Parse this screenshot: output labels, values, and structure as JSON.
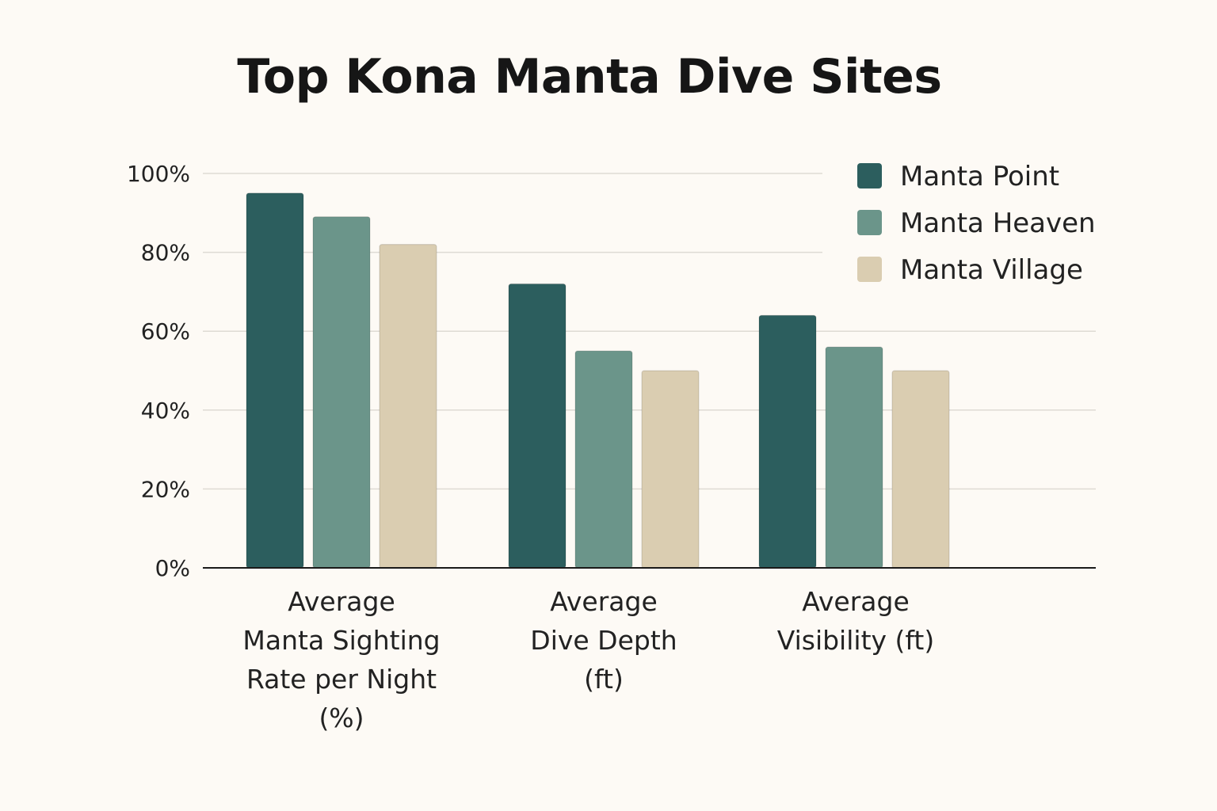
{
  "chart_data": {
    "type": "bar",
    "title": "Top Kona Manta Dive Sites",
    "xlabel": "",
    "ylabel": "",
    "ylim": [
      0,
      100
    ],
    "yticks": [
      "0%",
      "20%",
      "40%",
      "60%",
      "80%",
      "100%"
    ],
    "ytick_values": [
      0,
      20,
      40,
      60,
      80,
      100
    ],
    "categories": [
      [
        "Average",
        "Manta Sighting",
        "Rate per Night",
        "(%)"
      ],
      [
        "Average",
        "Dive Depth",
        "(ft)"
      ],
      [
        "Average",
        "Visibility (ft)"
      ]
    ],
    "series": [
      {
        "name": "Manta Point",
        "color": "#2c5e5e",
        "values": [
          95,
          72,
          64
        ]
      },
      {
        "name": "Manta Heaven",
        "color": "#6b958a",
        "values": [
          89,
          55,
          56
        ]
      },
      {
        "name": "Manta Village",
        "color": "#dacdb1",
        "values": [
          82,
          50,
          50
        ]
      }
    ],
    "grid": true,
    "legend_position": "top-right"
  }
}
